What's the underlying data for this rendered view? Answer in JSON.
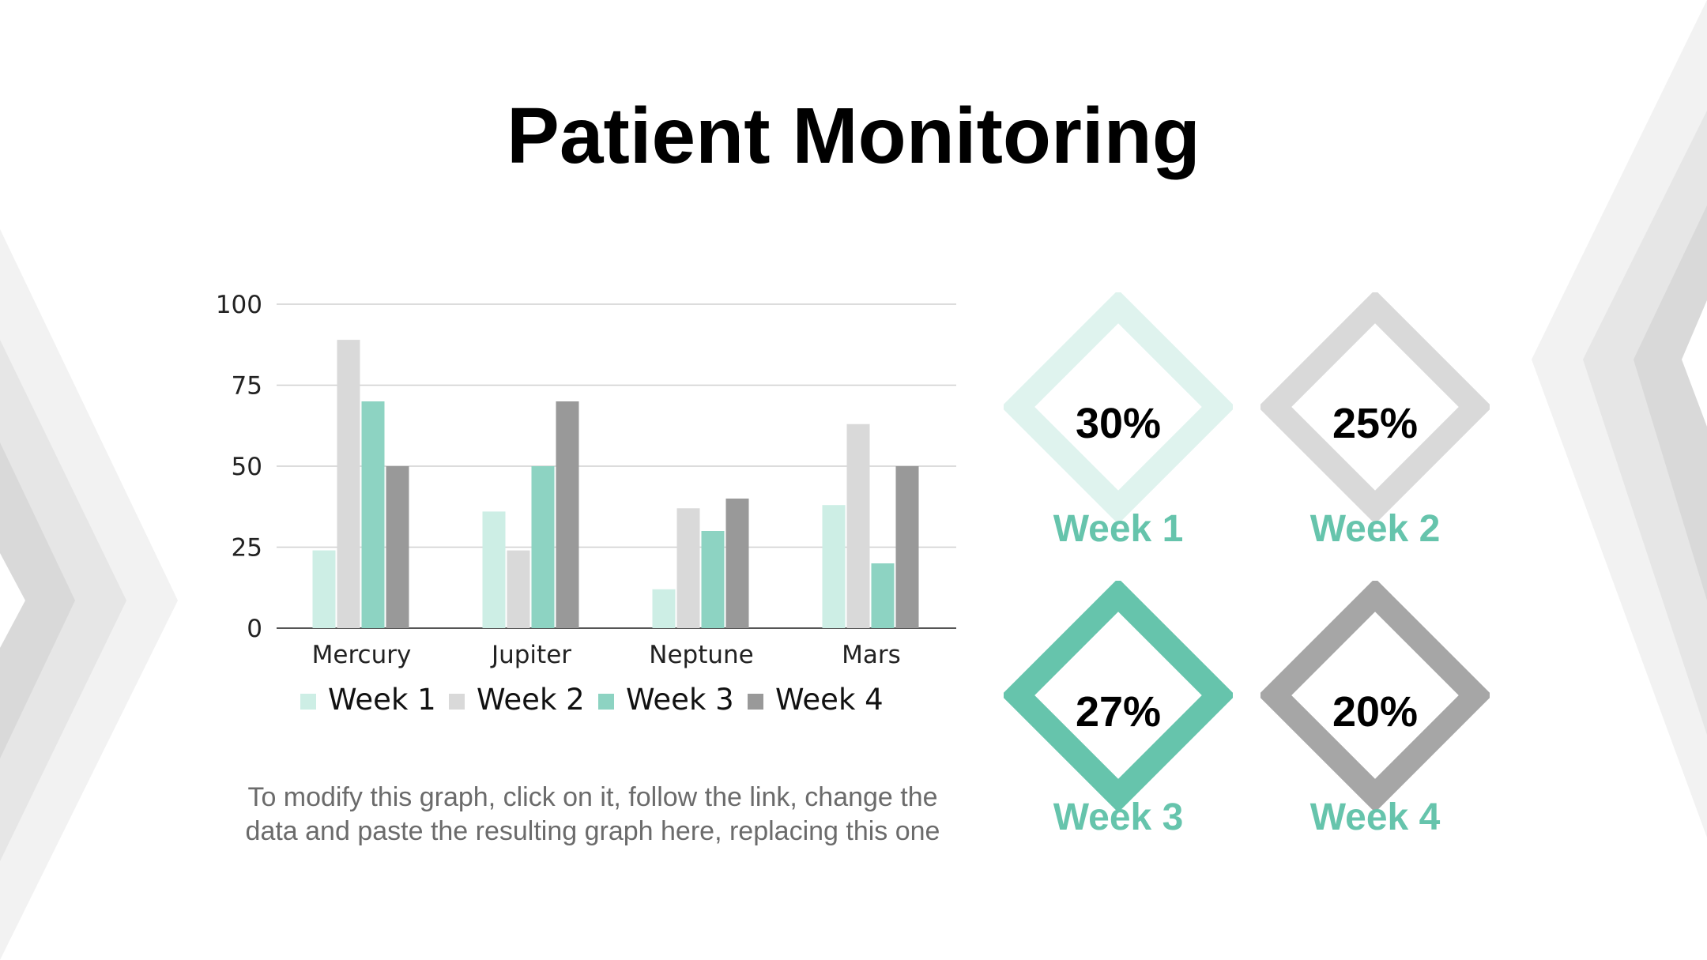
{
  "title": "Patient Monitoring",
  "note": {
    "line1": "To modify this graph, click on it, follow the link, change the",
    "line2": "data and paste the resulting graph here, replacing this one"
  },
  "colors": {
    "week1": "#cdeee5",
    "week2": "#d9d9d9",
    "week3": "#8dd3c2",
    "week4": "#999999",
    "accent": "#66c4ac",
    "deco_light": "#f2f2f2",
    "deco_mid": "#e6e6e6",
    "deco_dark": "#d9d9d9"
  },
  "chart_data": {
    "type": "bar",
    "categories": [
      "Mercury",
      "Jupiter",
      "Neptune",
      "Mars"
    ],
    "series": [
      {
        "name": "Week 1",
        "values": [
          24,
          36,
          12,
          38
        ]
      },
      {
        "name": "Week 2",
        "values": [
          89,
          24,
          37,
          63
        ]
      },
      {
        "name": "Week 3",
        "values": [
          70,
          50,
          30,
          20
        ]
      },
      {
        "name": "Week 4",
        "values": [
          50,
          70,
          40,
          50
        ]
      }
    ],
    "ylim": [
      0,
      100
    ],
    "yticks": [
      0,
      25,
      50,
      75,
      100
    ],
    "grid": true,
    "legend": "bottom"
  },
  "stats": [
    {
      "value": "30%",
      "label": "Week 1",
      "color": "#dff3ee"
    },
    {
      "value": "25%",
      "label": "Week 2",
      "color": "#d9d9d9"
    },
    {
      "value": "27%",
      "label": "Week 3",
      "color": "#66c4ac"
    },
    {
      "value": "20%",
      "label": "Week 4",
      "color": "#a6a6a6"
    }
  ]
}
